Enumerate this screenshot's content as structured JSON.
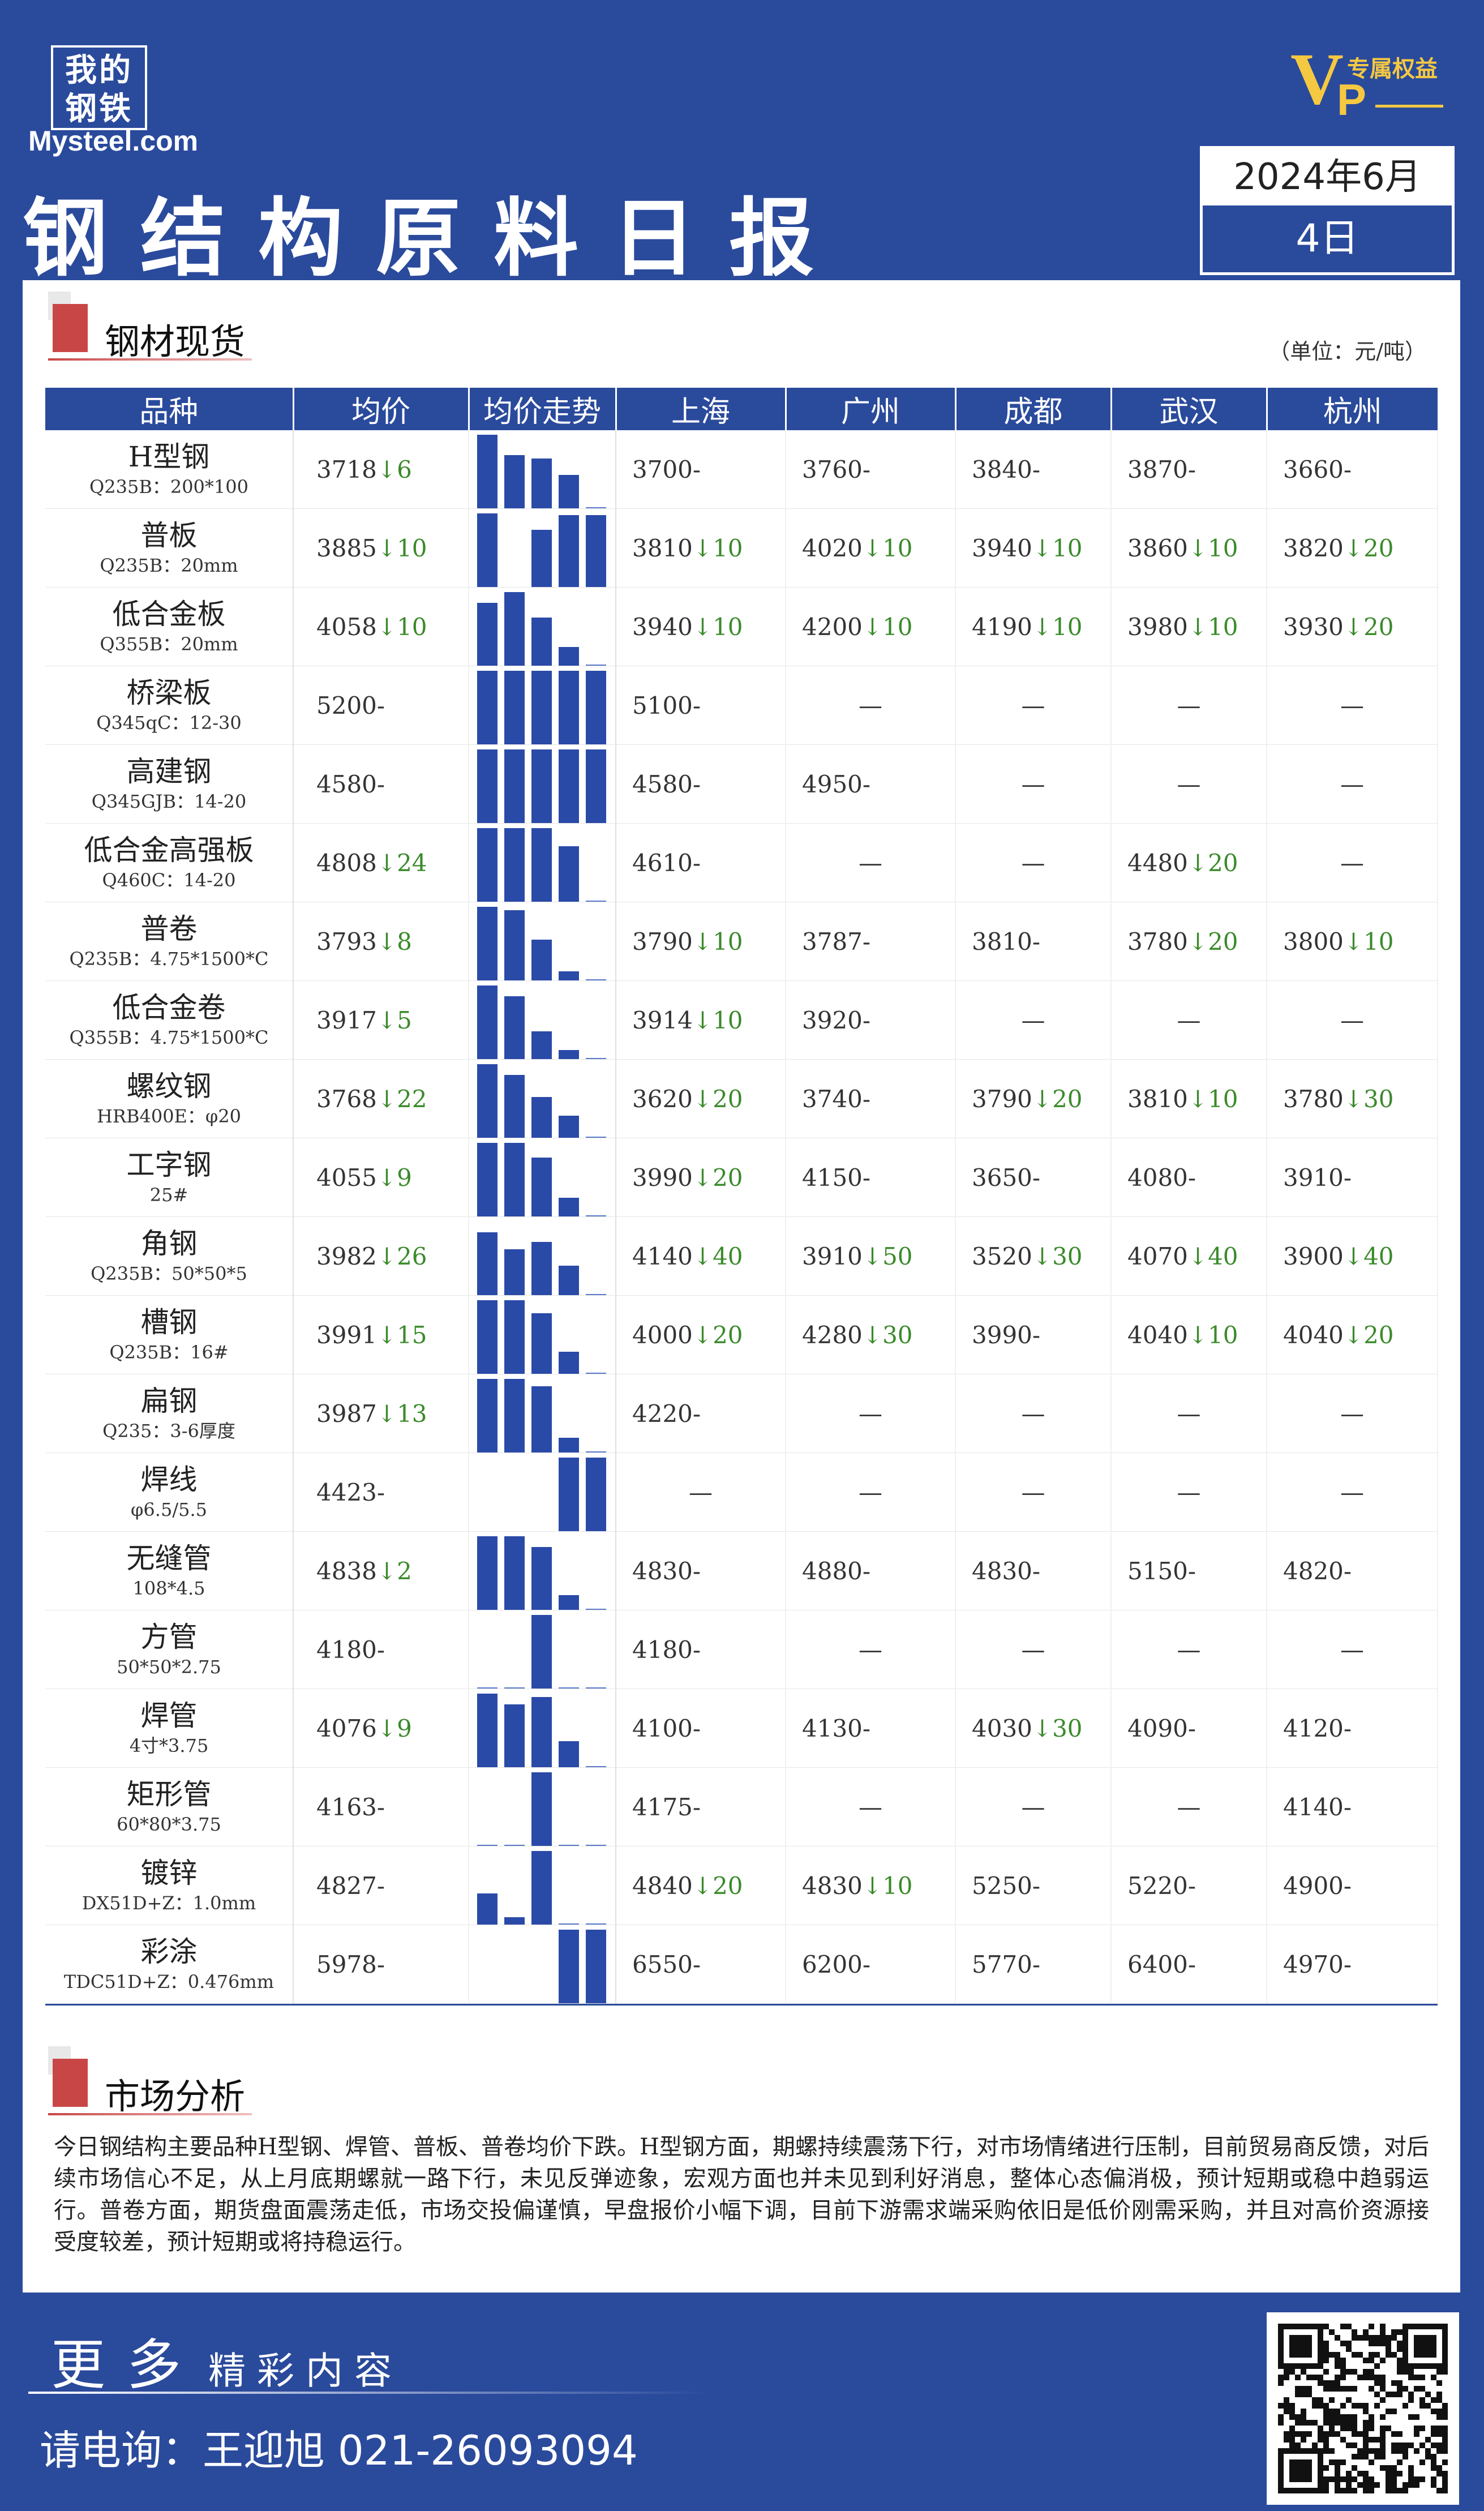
{
  "brand": {
    "cn": "我的钢铁",
    "en": "Mysteel.com"
  },
  "vip": {
    "badge": "VIP",
    "text": "专属权益"
  },
  "header": {
    "title": "钢结构原料日报",
    "date_ym": "2024年6月",
    "date_d": "4日"
  },
  "section1": {
    "title": "钢材现货",
    "unit": "（单位：元/吨）"
  },
  "table": {
    "columns": [
      "品种",
      "均价",
      "均价走势",
      "上海",
      "广州",
      "成都",
      "武汉",
      "杭州"
    ],
    "rows": [
      {
        "name": "H型钢",
        "spec": "Q235B：200*100",
        "avg": "3718",
        "avg_chg": "↓6",
        "trend": [
          1,
          0.72,
          0.68,
          0.45,
          0.04
        ],
        "cities": [
          [
            "3700",
            "-"
          ],
          [
            "3760",
            "-"
          ],
          [
            "3840",
            "-"
          ],
          [
            "3870",
            "-"
          ],
          [
            "3660",
            "-"
          ]
        ]
      },
      {
        "name": "普板",
        "spec": "Q235B：20mm",
        "avg": "3885",
        "avg_chg": "↓10",
        "trend": [
          1,
          0.0,
          0.78,
          0.98,
          0.98
        ],
        "cities": [
          [
            "3810",
            "↓10"
          ],
          [
            "4020",
            "↓10"
          ],
          [
            "3940",
            "↓10"
          ],
          [
            "3860",
            "↓10"
          ],
          [
            "3820",
            "↓20"
          ]
        ]
      },
      {
        "name": "低合金板",
        "spec": "Q355B：20mm",
        "avg": "4058",
        "avg_chg": "↓10",
        "trend": [
          0.85,
          1,
          0.65,
          0.25,
          0.04
        ],
        "cities": [
          [
            "3940",
            "↓10"
          ],
          [
            "4200",
            "↓10"
          ],
          [
            "4190",
            "↓10"
          ],
          [
            "3980",
            "↓10"
          ],
          [
            "3930",
            "↓20"
          ]
        ]
      },
      {
        "name": "桥梁板",
        "spec": "Q345qC：12-30",
        "avg": "5200",
        "avg_chg": "-",
        "trend": [
          1,
          1,
          1,
          1,
          1
        ],
        "cities": [
          [
            "5100",
            "-"
          ],
          [
            "—",
            ""
          ],
          [
            "—",
            ""
          ],
          [
            "—",
            ""
          ],
          [
            "—",
            ""
          ]
        ]
      },
      {
        "name": "高建钢",
        "spec": "Q345GJB：14-20",
        "avg": "4580",
        "avg_chg": "-",
        "trend": [
          1,
          1,
          1,
          1,
          1
        ],
        "cities": [
          [
            "4580",
            "-"
          ],
          [
            "4950",
            "-"
          ],
          [
            "—",
            ""
          ],
          [
            "—",
            ""
          ],
          [
            "—",
            ""
          ]
        ]
      },
      {
        "name": "低合金高强板",
        "spec": "Q460C：14-20",
        "avg": "4808",
        "avg_chg": "↓24",
        "trend": [
          1,
          1,
          1,
          0.75,
          0.04
        ],
        "cities": [
          [
            "4610",
            "-"
          ],
          [
            "—",
            ""
          ],
          [
            "—",
            ""
          ],
          [
            "4480",
            "↓20"
          ],
          [
            "—",
            ""
          ]
        ]
      },
      {
        "name": "普卷",
        "spec": "Q235B：4.75*1500*C",
        "avg": "3793",
        "avg_chg": "↓8",
        "trend": [
          1,
          0.95,
          0.55,
          0.12,
          0.04
        ],
        "cities": [
          [
            "3790",
            "↓10"
          ],
          [
            "3787",
            "-"
          ],
          [
            "3810",
            "-"
          ],
          [
            "3780",
            "↓20"
          ],
          [
            "3800",
            "↓10"
          ]
        ]
      },
      {
        "name": "低合金卷",
        "spec": "Q355B：4.75*1500*C",
        "avg": "3917",
        "avg_chg": "↓5",
        "trend": [
          1,
          0.85,
          0.38,
          0.12,
          0.04
        ],
        "cities": [
          [
            "3914",
            "↓10"
          ],
          [
            "3920",
            "-"
          ],
          [
            "—",
            ""
          ],
          [
            "—",
            ""
          ],
          [
            "—",
            ""
          ]
        ]
      },
      {
        "name": "螺纹钢",
        "spec": "HRB400E：φ20",
        "avg": "3768",
        "avg_chg": "↓22",
        "trend": [
          1,
          0.85,
          0.55,
          0.3,
          0.04
        ],
        "cities": [
          [
            "3620",
            "↓20"
          ],
          [
            "3740",
            "-"
          ],
          [
            "3790",
            "↓20"
          ],
          [
            "3810",
            "↓10"
          ],
          [
            "3780",
            "↓30"
          ]
        ]
      },
      {
        "name": "工字钢",
        "spec": "25#",
        "avg": "4055",
        "avg_chg": "↓9",
        "trend": [
          1,
          1,
          0.8,
          0.25,
          0.04
        ],
        "cities": [
          [
            "3990",
            "↓20"
          ],
          [
            "4150",
            "-"
          ],
          [
            "3650",
            "-"
          ],
          [
            "4080",
            "-"
          ],
          [
            "3910",
            "-"
          ]
        ]
      },
      {
        "name": "角钢",
        "spec": "Q235B：50*50*5",
        "avg": "3982",
        "avg_chg": "↓26",
        "trend": [
          0.85,
          0.62,
          0.72,
          0.4,
          0.04
        ],
        "cities": [
          [
            "4140",
            "↓40"
          ],
          [
            "3910",
            "↓50"
          ],
          [
            "3520",
            "↓30"
          ],
          [
            "4070",
            "↓40"
          ],
          [
            "3900",
            "↓40"
          ]
        ]
      },
      {
        "name": "槽钢",
        "spec": "Q235B：16#",
        "avg": "3991",
        "avg_chg": "↓15",
        "trend": [
          1,
          1,
          0.82,
          0.3,
          0.04
        ],
        "cities": [
          [
            "4000",
            "↓20"
          ],
          [
            "4280",
            "↓30"
          ],
          [
            "3990",
            "-"
          ],
          [
            "4040",
            "↓10"
          ],
          [
            "4040",
            "↓20"
          ]
        ]
      },
      {
        "name": "扁钢",
        "spec": "Q235：3-6厚度",
        "avg": "3987",
        "avg_chg": "↓13",
        "trend": [
          1,
          1,
          0.9,
          0.2,
          0.04
        ],
        "cities": [
          [
            "4220",
            "-"
          ],
          [
            "—",
            ""
          ],
          [
            "—",
            ""
          ],
          [
            "—",
            ""
          ],
          [
            "—",
            ""
          ]
        ]
      },
      {
        "name": "焊线",
        "spec": "φ6.5/5.5",
        "avg": "4423",
        "avg_chg": "-",
        "trend": [
          0,
          0,
          0,
          1,
          1
        ],
        "cities": [
          [
            "—",
            ""
          ],
          [
            "—",
            ""
          ],
          [
            "—",
            ""
          ],
          [
            "—",
            ""
          ],
          [
            "—",
            ""
          ]
        ]
      },
      {
        "name": "无缝管",
        "spec": "108*4.5",
        "avg": "4838",
        "avg_chg": "↓2",
        "trend": [
          1,
          1,
          0.85,
          0.2,
          0.04
        ],
        "cities": [
          [
            "4830",
            "-"
          ],
          [
            "4880",
            "-"
          ],
          [
            "4830",
            "-"
          ],
          [
            "5150",
            "-"
          ],
          [
            "4820",
            "-"
          ]
        ]
      },
      {
        "name": "方管",
        "spec": "50*50*2.75",
        "avg": "4180",
        "avg_chg": "-",
        "trend": [
          0.04,
          0.04,
          1,
          0.04,
          0.04
        ],
        "cities": [
          [
            "4180",
            "-"
          ],
          [
            "—",
            ""
          ],
          [
            "—",
            ""
          ],
          [
            "—",
            ""
          ],
          [
            "—",
            ""
          ]
        ]
      },
      {
        "name": "焊管",
        "spec": "4寸*3.75",
        "avg": "4076",
        "avg_chg": "↓9",
        "trend": [
          1,
          0.85,
          0.95,
          0.35,
          0.04
        ],
        "cities": [
          [
            "4100",
            "-"
          ],
          [
            "4130",
            "-"
          ],
          [
            "4030",
            "↓30"
          ],
          [
            "4090",
            "-"
          ],
          [
            "4120",
            "-"
          ]
        ]
      },
      {
        "name": "矩形管",
        "spec": "60*80*3.75",
        "avg": "4163",
        "avg_chg": "-",
        "trend": [
          0.04,
          0.04,
          1,
          0.04,
          0.04
        ],
        "cities": [
          [
            "4175",
            "-"
          ],
          [
            "—",
            ""
          ],
          [
            "—",
            ""
          ],
          [
            "—",
            ""
          ],
          [
            "4140",
            "-"
          ]
        ]
      },
      {
        "name": "镀锌",
        "spec": "DX51D+Z：1.0mm",
        "avg": "4827",
        "avg_chg": "-",
        "trend": [
          0.42,
          0.1,
          1,
          0.04,
          0.04
        ],
        "cities": [
          [
            "4840",
            "↓20"
          ],
          [
            "4830",
            "↓10"
          ],
          [
            "5250",
            "-"
          ],
          [
            "5220",
            "-"
          ],
          [
            "4900",
            "-"
          ]
        ]
      },
      {
        "name": "彩涂",
        "spec": "TDC51D+Z：0.476mm",
        "avg": "5978",
        "avg_chg": "-",
        "trend": [
          0,
          0,
          0,
          1,
          1
        ],
        "cities": [
          [
            "6550",
            "-"
          ],
          [
            "6200",
            "-"
          ],
          [
            "5770",
            "-"
          ],
          [
            "6400",
            "-"
          ],
          [
            "4970",
            "-"
          ]
        ]
      }
    ]
  },
  "section2": {
    "title": "市场分析"
  },
  "analysis": "今日钢结构主要品种H型钢、焊管、普板、普卷均价下跌。H型钢方面，期螺持续震荡下行，对市场情绪进行压制，目前贸易商反馈，对后续市场信心不足，从上月底期螺就一路下行，未见反弹迹象，宏观方面也并未见到利好消息，整体心态偏消极，预计短期或稳中趋弱运行。普卷方面，期货盘面震荡走低，市场交投偏谨慎，早盘报价小幅下调，目前下游需求端采购依旧是低价刚需采购，并且对高价资源接受度较差，预计短期或将持稳运行。",
  "footer": {
    "more_big": "更多",
    "more_small": "精彩内容",
    "contact": "请电询：王迎旭  021-26093094"
  },
  "colors": {
    "brand_blue": "#2a4a9c",
    "down_green": "#3a8a2a",
    "accent_red": "#c94646",
    "vip_gold": "#f5c842"
  }
}
